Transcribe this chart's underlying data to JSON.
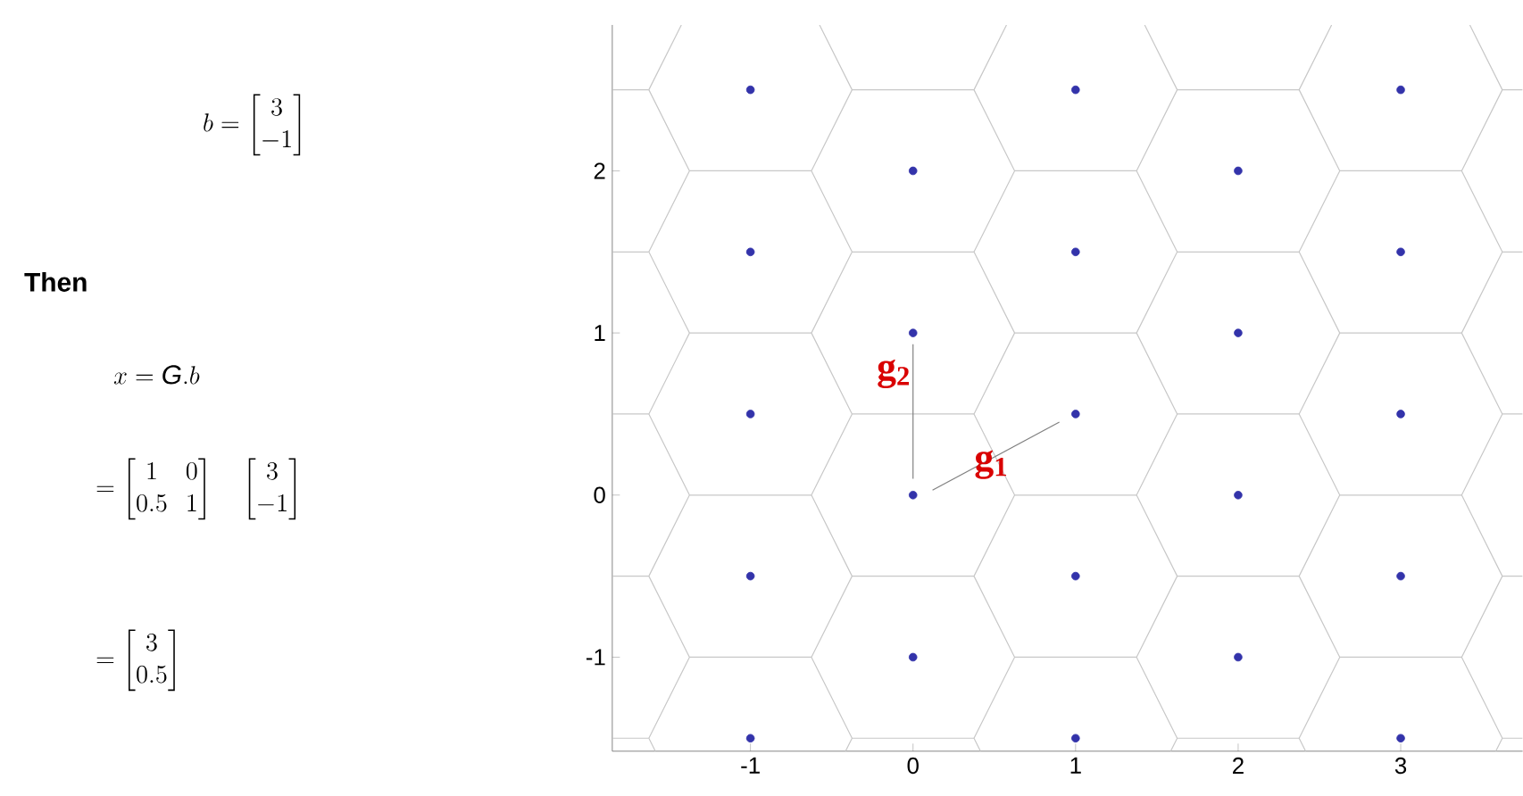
{
  "chart_data": {
    "type": "scatter",
    "xlim": [
      -1.85,
      3.75
    ],
    "ylim": [
      -1.58,
      2.9
    ],
    "xticks": [
      -1,
      0,
      1,
      2,
      3
    ],
    "yticks": [
      -1,
      0,
      1,
      2
    ],
    "grid": false,
    "series": [
      {
        "color": "#3333aa",
        "x": [
          -1,
          -1,
          -1,
          -1,
          -1,
          0,
          0,
          0,
          0,
          1,
          1,
          1,
          1,
          1,
          2,
          2,
          2,
          2,
          3,
          3,
          3,
          3,
          3
        ],
        "values": [
          2.5,
          1.5,
          0.5,
          -0.5,
          -1.5,
          2,
          1,
          0,
          -1,
          2.5,
          1.5,
          0.5,
          -0.5,
          -1.5,
          2,
          1,
          0,
          -1,
          2.5,
          1.5,
          0.5,
          -0.5,
          -1.5
        ]
      },
      {
        "type": "line",
        "marker": "none",
        "line_style": "solid",
        "color": "#c8c8c8",
        "x": [
          -1.585,
          -1.625,
          -1.375,
          -1.625,
          -1.375,
          -1.625,
          -1.375,
          -1.625,
          -1.375,
          -1.625,
          -1.425
        ],
        "values": [
          -1.58,
          -1.5,
          -1,
          -0.5,
          0,
          0.5,
          1,
          1.5,
          2,
          2.5,
          2.9
        ]
      },
      {
        "type": "line",
        "marker": "none",
        "line_style": "solid",
        "color": "#c8c8c8",
        "x": [
          -0.415,
          -0.375,
          -0.625,
          -0.375,
          -0.625,
          -0.375,
          -0.625,
          -0.375,
          -0.625,
          -0.375,
          -0.575
        ],
        "values": [
          -1.58,
          -1.5,
          -1,
          -0.5,
          0,
          0.5,
          1,
          1.5,
          2,
          2.5,
          2.9
        ]
      },
      {
        "type": "line",
        "marker": "none",
        "line_style": "solid",
        "color": "#c8c8c8",
        "x": [
          0.415,
          0.375,
          0.625,
          0.375,
          0.625,
          0.375,
          0.625,
          0.375,
          0.625,
          0.375,
          0.575
        ],
        "values": [
          -1.58,
          -1.5,
          -1,
          -0.5,
          0,
          0.5,
          1,
          1.5,
          2,
          2.5,
          2.9
        ]
      },
      {
        "type": "line",
        "marker": "none",
        "line_style": "solid",
        "color": "#c8c8c8",
        "x": [
          1.585,
          1.625,
          1.375,
          1.625,
          1.375,
          1.625,
          1.375,
          1.625,
          1.375,
          1.625,
          1.425
        ],
        "values": [
          -1.58,
          -1.5,
          -1,
          -0.5,
          0,
          0.5,
          1,
          1.5,
          2,
          2.5,
          2.9
        ]
      },
      {
        "type": "line",
        "marker": "none",
        "line_style": "solid",
        "color": "#c8c8c8",
        "x": [
          2.415,
          2.375,
          2.625,
          2.375,
          2.625,
          2.375,
          2.625,
          2.375,
          2.625,
          2.375,
          2.575
        ],
        "values": [
          -1.58,
          -1.5,
          -1,
          -0.5,
          0,
          0.5,
          1,
          1.5,
          2,
          2.5,
          2.9
        ]
      },
      {
        "type": "line",
        "marker": "none",
        "line_style": "solid",
        "color": "#c8c8c8",
        "x": [
          3.585,
          3.625,
          3.375,
          3.625,
          3.375,
          3.625,
          3.375,
          3.625,
          3.375,
          3.625,
          3.425
        ],
        "values": [
          -1.58,
          -1.5,
          -1,
          -0.5,
          0,
          0.5,
          1,
          1.5,
          2,
          2.5,
          2.9
        ]
      },
      {
        "type": "line",
        "marker": "none",
        "line_style": "solid",
        "color": "#c8c8c8",
        "x": [
          -1.85,
          -1.625,
          null,
          -0.375,
          0.375,
          null,
          1.625,
          2.375,
          null,
          3.625,
          3.75
        ],
        "values": [
          -1.5,
          -1.5,
          null,
          -1.5,
          -1.5,
          null,
          -1.5,
          -1.5,
          null,
          -1.5,
          -1.5
        ]
      },
      {
        "type": "line",
        "marker": "none",
        "line_style": "solid",
        "color": "#c8c8c8",
        "x": [
          -1.85,
          -1.625,
          null,
          -0.375,
          0.375,
          null,
          1.625,
          2.375,
          null,
          3.625,
          3.75
        ],
        "values": [
          -0.5,
          -0.5,
          null,
          -0.5,
          -0.5,
          null,
          -0.5,
          -0.5,
          null,
          -0.5,
          -0.5
        ]
      },
      {
        "type": "line",
        "marker": "none",
        "line_style": "solid",
        "color": "#c8c8c8",
        "x": [
          -1.85,
          -1.625,
          null,
          -0.375,
          0.375,
          null,
          1.625,
          2.375,
          null,
          3.625,
          3.75
        ],
        "values": [
          0.5,
          0.5,
          null,
          0.5,
          0.5,
          null,
          0.5,
          0.5,
          null,
          0.5,
          0.5
        ]
      },
      {
        "type": "line",
        "marker": "none",
        "line_style": "solid",
        "color": "#c8c8c8",
        "x": [
          -1.85,
          -1.625,
          null,
          -0.375,
          0.375,
          null,
          1.625,
          2.375,
          null,
          3.625,
          3.75
        ],
        "values": [
          1.5,
          1.5,
          null,
          1.5,
          1.5,
          null,
          1.5,
          1.5,
          null,
          1.5,
          1.5
        ]
      },
      {
        "type": "line",
        "marker": "none",
        "line_style": "solid",
        "color": "#c8c8c8",
        "x": [
          -1.85,
          -1.625,
          null,
          -0.375,
          0.375,
          null,
          1.625,
          2.375,
          null,
          3.625,
          3.75
        ],
        "values": [
          2.5,
          2.5,
          null,
          2.5,
          2.5,
          null,
          2.5,
          2.5,
          null,
          2.5,
          2.5
        ]
      },
      {
        "type": "line",
        "marker": "none",
        "line_style": "solid",
        "color": "#c8c8c8",
        "x": [
          -1.375,
          -0.625,
          null,
          0.625,
          1.375,
          null,
          2.625,
          3.375
        ],
        "values": [
          -1,
          -1,
          null,
          -1,
          -1,
          null,
          -1,
          -1
        ]
      },
      {
        "type": "line",
        "marker": "none",
        "line_style": "solid",
        "color": "#c8c8c8",
        "x": [
          -1.375,
          -0.625,
          null,
          0.625,
          1.375,
          null,
          2.625,
          3.375
        ],
        "values": [
          0,
          0,
          null,
          0,
          0,
          null,
          0,
          0
        ]
      },
      {
        "type": "line",
        "marker": "none",
        "line_style": "solid",
        "color": "#c8c8c8",
        "x": [
          -1.375,
          -0.625,
          null,
          0.625,
          1.375,
          null,
          2.625,
          3.375
        ],
        "values": [
          1,
          1,
          null,
          1,
          1,
          null,
          1,
          1
        ]
      },
      {
        "type": "line",
        "marker": "none",
        "line_style": "solid",
        "color": "#c8c8c8",
        "x": [
          -1.375,
          -0.625,
          null,
          0.625,
          1.375,
          null,
          2.625,
          3.375
        ],
        "values": [
          2,
          2,
          null,
          2,
          2,
          null,
          2,
          2
        ]
      },
      {
        "type": "line",
        "marker": "none",
        "line_style": "solid",
        "color": "#808080",
        "x": [
          0.12,
          0.9
        ],
        "values": [
          0.03,
          0.45
        ]
      },
      {
        "type": "line",
        "marker": "none",
        "line_style": "solid",
        "color": "#808080",
        "x": [
          0,
          0
        ],
        "values": [
          0.1,
          0.93
        ]
      }
    ],
    "annotations": [
      "b=\\begin{bmatrix}3\\\\-1\\end{bmatrix}",
      "\\text{Then}",
      "x=\\mathit{G}.b",
      "=\\begin{bmatrix}1&0\\\\0.5&1\\end{bmatrix}\\quad\\begin{bmatrix}3\\\\-1\\end{bmatrix}",
      "=\\begin{bmatrix}3\\\\0.5\\end{bmatrix}",
      {
        "text": "g$_{1}$",
        "x": 0.6,
        "y": 0.29
      },
      {
        "text": "g$_{2}$",
        "x": 0,
        "y": 0.85
      }
    ]
  }
}
